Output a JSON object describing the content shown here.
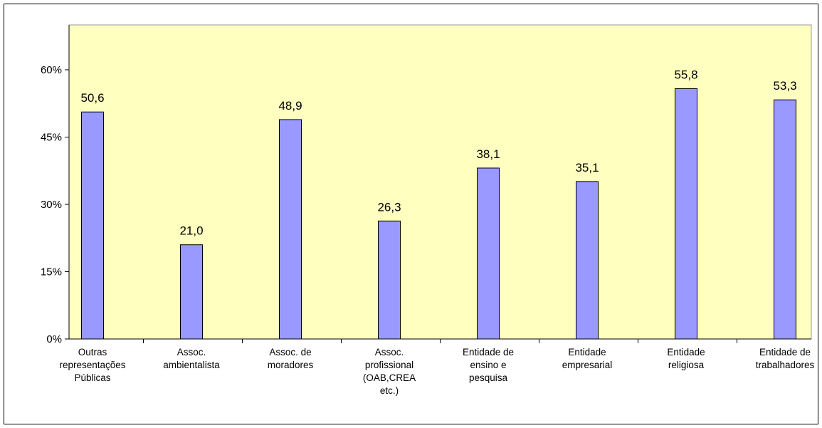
{
  "chart_data": {
    "type": "bar",
    "categories": [
      [
        "Outras",
        "representações",
        "Públicas"
      ],
      [
        "Assoc.",
        "ambientalista"
      ],
      [
        "Assoc. de",
        "moradores"
      ],
      [
        "Assoc.",
        "profissional",
        "(OAB,CREA",
        "etc.)"
      ],
      [
        "Entidade de",
        "ensino e",
        "pesquisa"
      ],
      [
        "Entidade",
        "empresarial"
      ],
      [
        "Entidade",
        "religiosa"
      ],
      [
        "Entidade de",
        "trabalhadores"
      ]
    ],
    "values": [
      50.6,
      21.0,
      48.9,
      26.3,
      38.1,
      35.1,
      55.8,
      53.3
    ],
    "value_labels": [
      "50,6",
      "21,0",
      "48,9",
      "26,3",
      "38,1",
      "35,1",
      "55,8",
      "53,3"
    ],
    "color": "#9999ff",
    "ylim": [
      0,
      70
    ],
    "yticks": [
      {
        "value": 0,
        "label": "0%"
      },
      {
        "value": 15,
        "label": "15%"
      },
      {
        "value": 30,
        "label": "30%"
      },
      {
        "value": 45,
        "label": "45%"
      },
      {
        "value": 60,
        "label": "60%"
      }
    ],
    "grid": false
  }
}
